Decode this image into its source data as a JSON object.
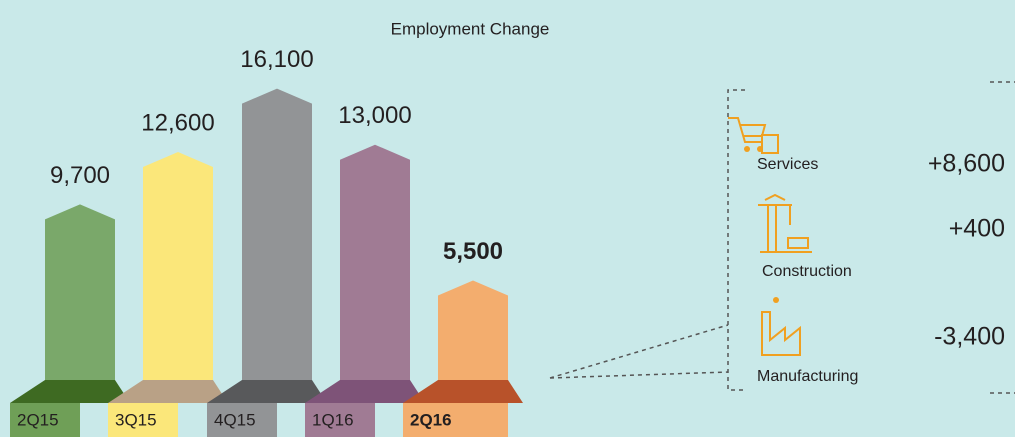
{
  "chart_data": {
    "type": "bar",
    "title": "Employment Change",
    "categories": [
      "2Q15",
      "3Q15",
      "4Q15",
      "1Q16",
      "2Q16"
    ],
    "values": [
      9700,
      12600,
      16100,
      13000,
      5500
    ],
    "value_labels": [
      "9,700",
      "12,600",
      "16,100",
      "13,000",
      "5,500"
    ],
    "colors": [
      "#7aa86a",
      "#fbe77a",
      "#929496",
      "#a07b94",
      "#f3ad6e"
    ],
    "base_colors": [
      "#3e6a22",
      "#b9a186",
      "#58595b",
      "#7e5378",
      "#b8522a"
    ],
    "label_colors": [
      "#6f9f57",
      "#fbe77a",
      "#929496",
      "#a07b94",
      "#f3ad6e"
    ]
  },
  "breakdown": {
    "categories": [
      "Services",
      "Construction",
      "Manufacturing"
    ],
    "values": [
      8600,
      400,
      -3400
    ],
    "value_labels": [
      "+8,600",
      "+400",
      "-3,400"
    ]
  }
}
